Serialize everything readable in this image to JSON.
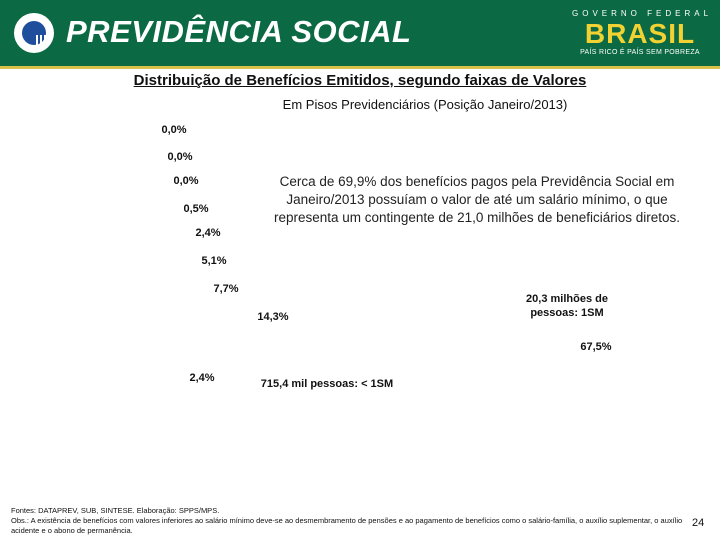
{
  "header": {
    "brand_title": "PREVIDÊNCIA SOCIAL",
    "gov_top": "GOVERNO FEDERAL",
    "gov_word": "BRASIL",
    "gov_slogan": "PAÍS RICO É PAÍS SEM POBREZA",
    "colors": {
      "background": "#0b6a43",
      "accent": "#f2d233"
    }
  },
  "chart_data": {
    "type": "pie",
    "title": "Distribuição de Benefícios Emitidos, segundo faixas de Valores",
    "subtitle": "Em Pisos Previdenciários (Posição Janeiro/2013)",
    "slices": [
      {
        "label": "67,5%",
        "value": 67.5,
        "color": "#3b5f8f"
      },
      {
        "label": "14,3%",
        "value": 14.3,
        "color": "#8a3f3f"
      },
      {
        "label": "7,7%",
        "value": 7.7,
        "color": "#6f8a3a"
      },
      {
        "label": "5,1%",
        "value": 5.1,
        "color": "#5a4380"
      },
      {
        "label": "2,4%",
        "value": 2.4,
        "color": "#3a8ca0"
      },
      {
        "label": "0,5%",
        "value": 0.5,
        "color": "#d07a30"
      },
      {
        "label": "0,0%",
        "value": 0.0,
        "color": "#7d9cc4"
      },
      {
        "label": "0,0%",
        "value": 0.0,
        "color": "#c47d7d"
      },
      {
        "label": "0,0%",
        "value": 0.0,
        "color": "#a8c47d"
      },
      {
        "label": "2,4%",
        "value": 2.4,
        "color": "#9a8ab5"
      }
    ]
  },
  "annotations": {
    "callout": "Cerca de 69,9% dos benefícios pagos pela Previdência Social em Janeiro/2013  possuíam o valor de até um salário mínimo, o que representa um contingente de 21,0 milhões de beneficiários diretos.",
    "right_slice": "20,3 milhões de pessoas: 1SM",
    "left_slice": "715,4  mil pessoas: < 1SM"
  },
  "footer": {
    "sources": "Fontes: DATAPREV, SUB, SINTESE. Elaboração: SPPS/MPS.",
    "note": "Obs.: A existência de benefícios com valores inferiores ao salário mínimo deve-se ao desmembramento de pensões e ao pagamento de benefícios como o salário-família, o auxílio suplementar, o auxílio acidente e o abono de permanência."
  },
  "page_number": "24"
}
